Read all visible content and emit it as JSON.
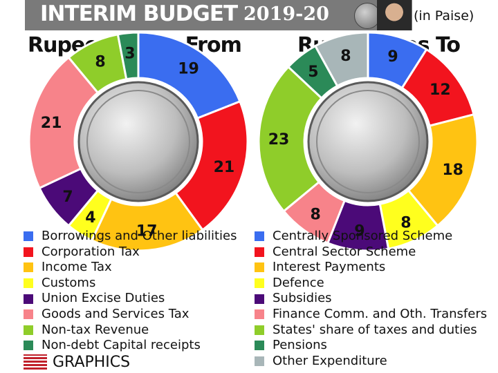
{
  "header": {
    "title": "INTERIM BUDGET",
    "year": "2019-20",
    "unit": "(in Paise)"
  },
  "left_heading": "Rupee Comes From",
  "right_heading": "Rupee Goes To",
  "credit": "GRAPHICS",
  "colors": {
    "blue": "#3a6df0",
    "red": "#f2141e",
    "orange": "#ffc312",
    "yellow": "#ffff1e",
    "purple": "#4b0a78",
    "pink": "#f7838a",
    "lightgreen": "#8fcd2a",
    "teal": "#2b8a58",
    "grey": "#a8b6b8"
  },
  "chart_data": [
    {
      "type": "pie",
      "title": "Rupee Comes From",
      "categories": [
        "Borrowings and Other liabilities",
        "Corporation Tax",
        "Income Tax",
        "Customs",
        "Union Excise Duties",
        "Goods and Services Tax",
        "Non-tax Revenue",
        "Non-debt Capital receipts"
      ],
      "values": [
        19,
        21,
        17,
        4,
        7,
        21,
        8,
        3
      ],
      "colors": [
        "#3a6df0",
        "#f2141e",
        "#ffc312",
        "#ffff1e",
        "#4b0a78",
        "#f7838a",
        "#8fcd2a",
        "#2b8a58"
      ]
    },
    {
      "type": "pie",
      "title": "Rupee Goes To",
      "categories": [
        "Centrally Sponsored Scheme",
        "Central Sector Scheme",
        "Interest Payments",
        "Defence",
        "Subsidies",
        "Finance Comm. and Oth. Transfers",
        "States' share of taxes and duties",
        "Pensions",
        "Other Expenditure"
      ],
      "values": [
        9,
        12,
        18,
        8,
        9,
        8,
        23,
        5,
        8
      ],
      "colors": [
        "#3a6df0",
        "#f2141e",
        "#ffc312",
        "#ffff1e",
        "#4b0a78",
        "#f7838a",
        "#8fcd2a",
        "#2b8a58",
        "#a8b6b8"
      ]
    }
  ]
}
